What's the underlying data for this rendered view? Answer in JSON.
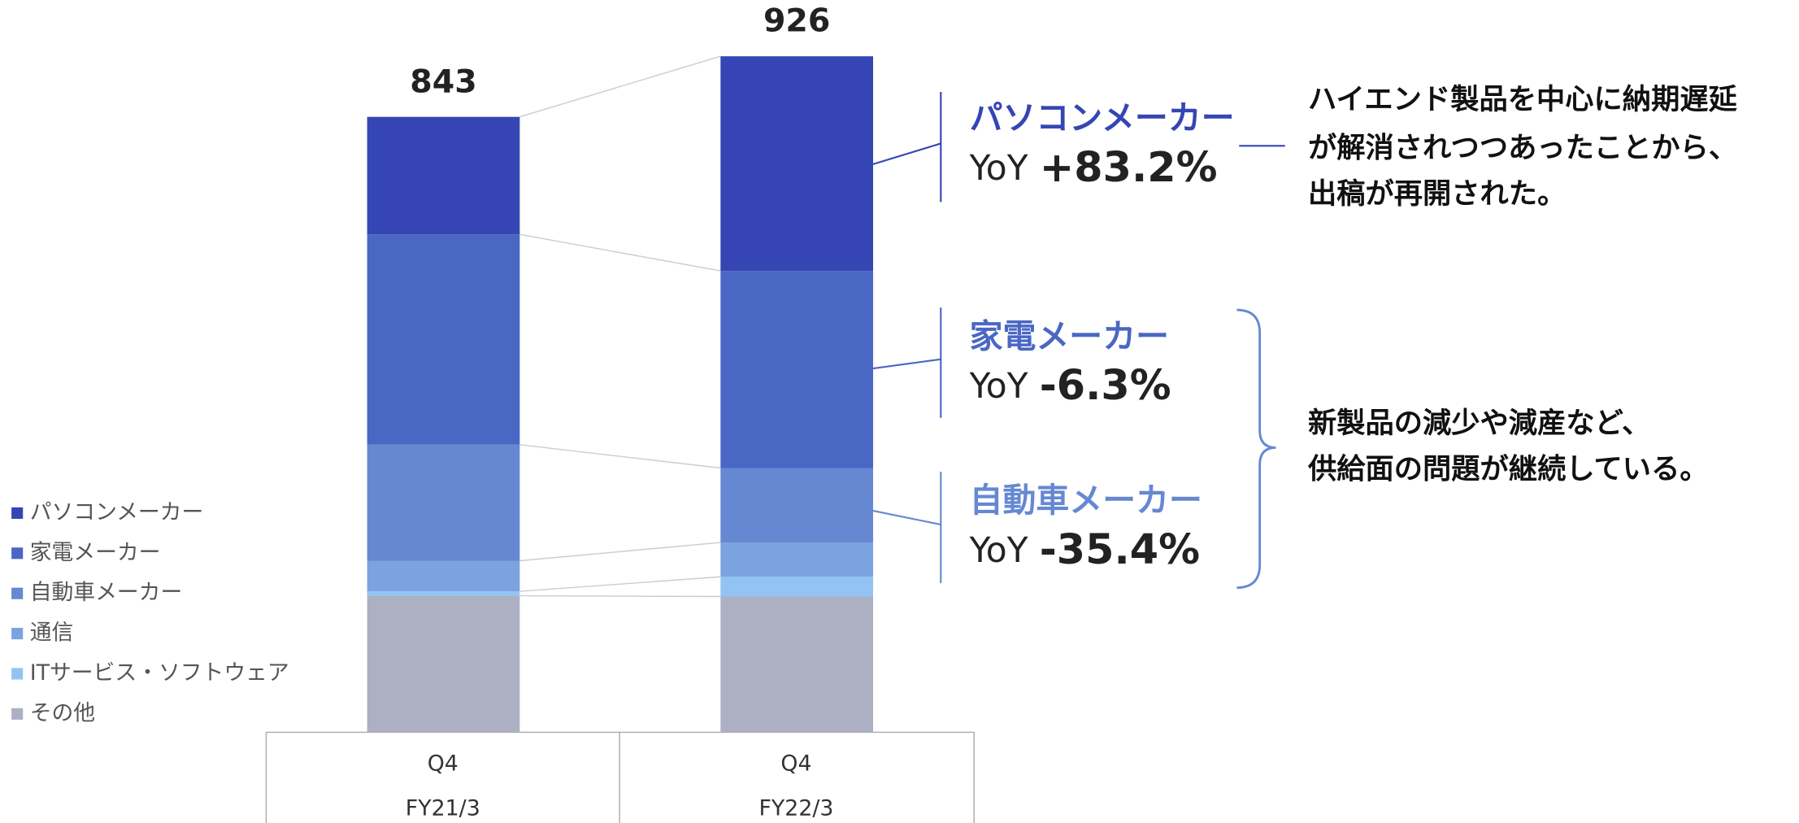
{
  "chart_data": {
    "type": "stacked_bar",
    "categories": [
      "FY21/3",
      "FY22/3"
    ],
    "quarters": [
      "Q4",
      "Q4"
    ],
    "totals": [
      843,
      926
    ],
    "series": [
      {
        "name": "その他",
        "color": "#acb0c2",
        "values": [
          187,
          186
        ]
      },
      {
        "name": "ITサービス・ソフトウェア",
        "color": "#93c3f3",
        "values": [
          6,
          27
        ]
      },
      {
        "name": "通信",
        "color": "#7aa3e0",
        "values": [
          42,
          47
        ]
      },
      {
        "name": "自動車メーカー",
        "color": "#6688d2",
        "values": [
          159,
          102
        ]
      },
      {
        "name": "家電メーカー",
        "color": "#4a67c4",
        "values": [
          288,
          270
        ]
      },
      {
        "name": "パソコンメーカー",
        "color": "#3546b4",
        "values": [
          161,
          294
        ]
      }
    ],
    "legend_order": [
      5,
      4,
      3,
      2,
      1,
      0
    ],
    "annotations": [
      {
        "label": "パソコンメーカー",
        "color": "#3546b4",
        "yoy_label": "YoY",
        "yoy": "+83.2%"
      },
      {
        "label": "家電メーカー",
        "color": "#4a67c4",
        "yoy_label": "YoY",
        "yoy": "-6.3%"
      },
      {
        "label": "自動車メーカー",
        "color": "#6688d2",
        "yoy_label": "YoY",
        "yoy": "-35.4%"
      }
    ],
    "notes": [
      [
        "ハイエンド製品を中心に納期遅延",
        "が解消されつつあったことから、",
        "出稿が再開された。"
      ],
      [
        "新製品の減少や減産など、",
        "供給面の問題が継続している。"
      ]
    ]
  }
}
